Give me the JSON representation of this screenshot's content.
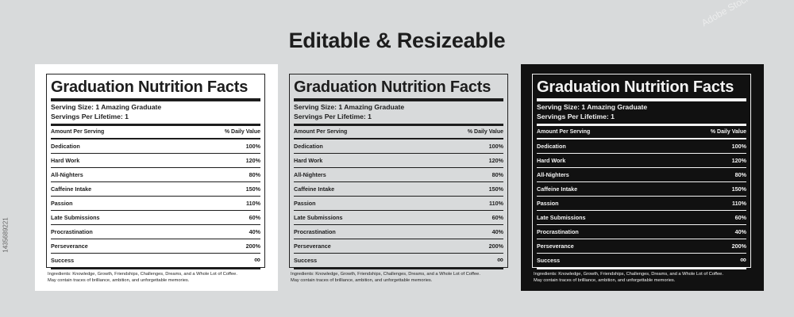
{
  "header": {
    "title": "Editable & Resizeable"
  },
  "label": {
    "title": "Graduation Nutrition Facts",
    "serving_size": "Serving Size: 1 Amazing Graduate",
    "servings_per": "Servings Per Lifetime: 1",
    "amount_header": "Amount Per Serving",
    "daily_header": "% Daily Value",
    "rows": [
      {
        "name": "Dedication",
        "value": "100%"
      },
      {
        "name": "Hard Work",
        "value": "120%"
      },
      {
        "name": "All-Nighters",
        "value": "80%"
      },
      {
        "name": "Caffeine Intake",
        "value": "150%"
      },
      {
        "name": "Passion",
        "value": "110%"
      },
      {
        "name": "Late Submissions",
        "value": "60%"
      },
      {
        "name": "Procrastination",
        "value": "40%"
      },
      {
        "name": "Perseverance",
        "value": "200%"
      },
      {
        "name": "Success",
        "value": "∞"
      }
    ],
    "ingredients_line1": "Ingredients: Knowledge, Growth, Friendships, Challenges, Dreams, and a Whole Lot of Coffee.",
    "ingredients_line2": "May contain traces of brilliance, ambition, and unforgettable memories."
  },
  "colors": {
    "background": "#d8dadb",
    "panel_white": "#ffffff",
    "panel_gray": "#d8dadb",
    "panel_black": "#111111",
    "text_dark": "#1d1d1d",
    "text_light": "#f4f4f4"
  },
  "side_stock_id": "1435689221",
  "watermark": "Adobe Stock"
}
